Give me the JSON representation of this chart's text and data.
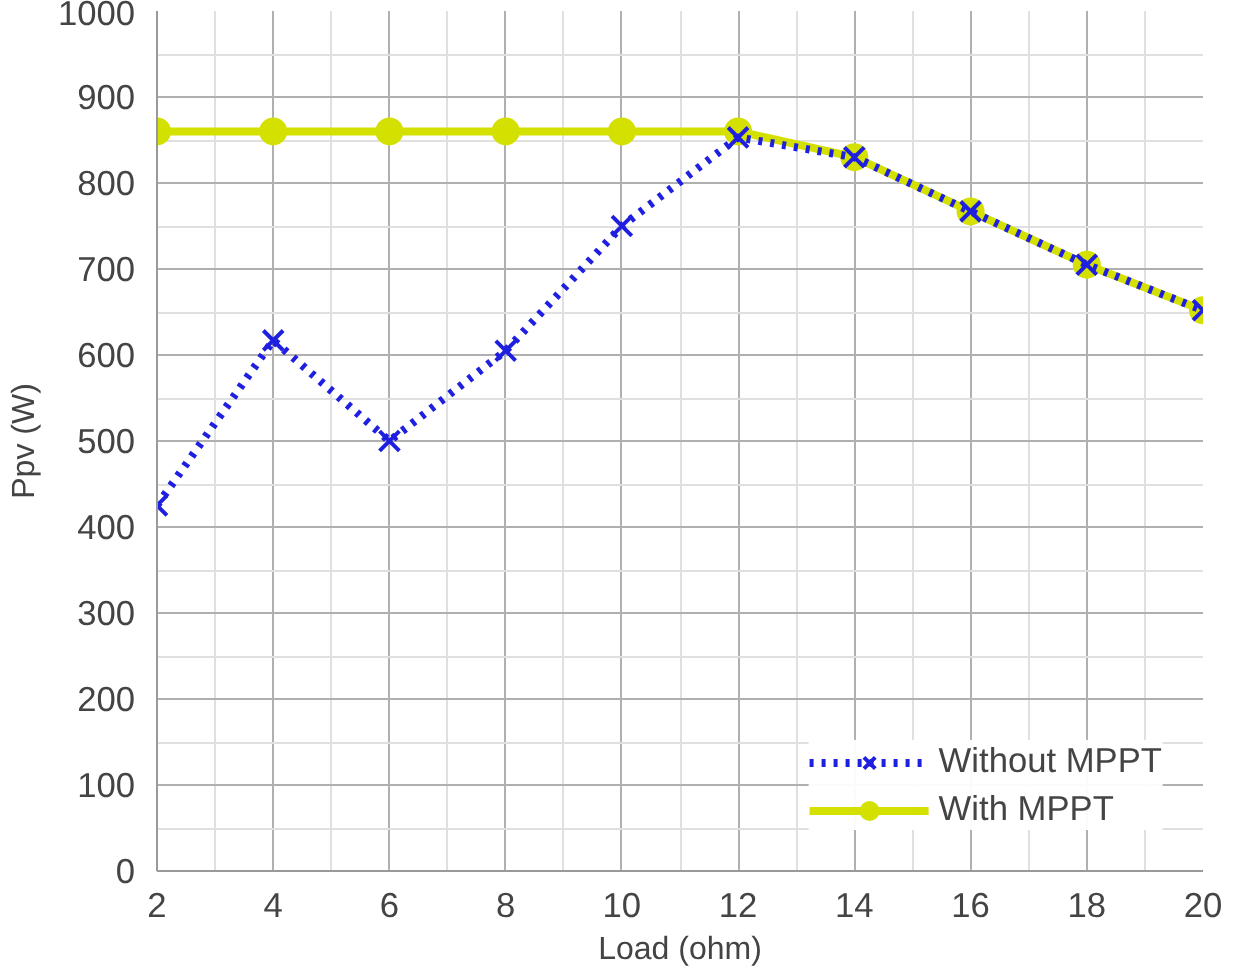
{
  "chart_data": {
    "type": "line",
    "xlabel": "Load (ohm)",
    "ylabel": "Ppv (W)",
    "x": [
      2,
      4,
      6,
      8,
      10,
      12,
      14,
      16,
      18,
      20
    ],
    "xlim": [
      2,
      20
    ],
    "xticks": [
      2,
      4,
      6,
      8,
      10,
      12,
      14,
      16,
      18,
      20
    ],
    "ylim": [
      0,
      1000
    ],
    "yticks": [
      0,
      100,
      200,
      300,
      400,
      500,
      600,
      700,
      800,
      900,
      1000
    ],
    "grid": true,
    "legend": "bottom right",
    "series": [
      {
        "name": "Without MPPT",
        "color": "#1f1fe0",
        "marker": "cross",
        "line_style": "dotted",
        "values": [
          425,
          617,
          500,
          605,
          750,
          853,
          830,
          767,
          705,
          652
        ]
      },
      {
        "name": "With MPPT",
        "color": "#d4e000",
        "marker": "circle",
        "line_style": "solid",
        "values": [
          860,
          860,
          860,
          860,
          860,
          860,
          830,
          767,
          705,
          652
        ]
      }
    ]
  }
}
